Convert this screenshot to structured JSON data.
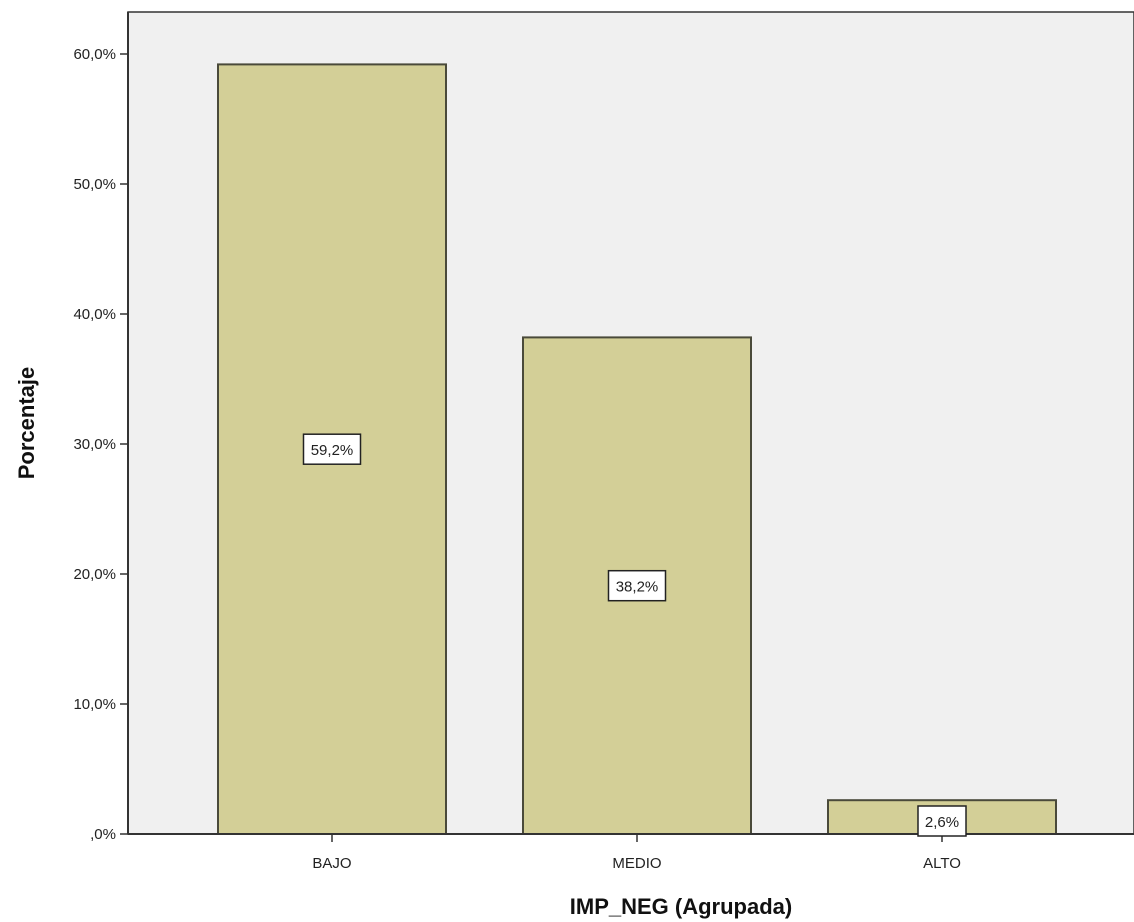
{
  "chart_data": {
    "type": "bar",
    "title": "",
    "xlabel": "IMP_NEG (Agrupada)",
    "ylabel": "Porcentaje",
    "categories": [
      "BAJO",
      "MEDIO",
      "ALTO"
    ],
    "values": [
      59.2,
      38.2,
      2.6
    ],
    "data_labels": [
      "59,2%",
      "38,2%",
      "2,6%"
    ],
    "ylim": [
      0,
      60
    ],
    "yticks": [
      0,
      10,
      20,
      30,
      40,
      50,
      60
    ],
    "ytick_labels": [
      ",0%",
      "10,0%",
      "20,0%",
      "30,0%",
      "40,0%",
      "50,0%",
      "60,0%"
    ],
    "grid": false,
    "legend": "none",
    "colors": {
      "plot_background": "#f0f0f0",
      "bar_fill": "#d3cf97",
      "bar_stroke": "#4a4a3a",
      "axis": "#333333",
      "label_box": "#ffffff"
    }
  }
}
